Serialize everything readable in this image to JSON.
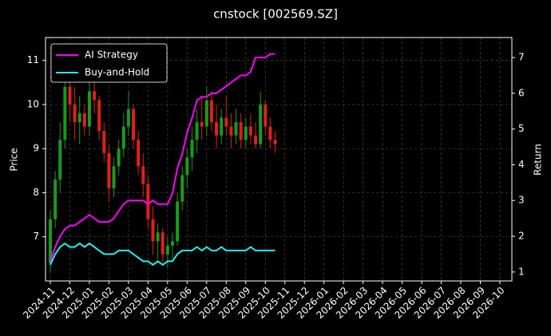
{
  "chart_data": {
    "type": "candlestick",
    "title": "cnstock [002569.SZ]",
    "y_label": "Price",
    "y2_label": "Return",
    "ylim": [
      6.0,
      11.52
    ],
    "yticks": [
      7,
      8,
      9,
      10,
      11
    ],
    "y2lim": [
      0.75,
      7.56
    ],
    "y2ticks": [
      1,
      2,
      3,
      4,
      5,
      6,
      7
    ],
    "xticks": [
      "2024-11",
      "2024-12",
      "2025-01",
      "2025-02",
      "2025-03",
      "2025-04",
      "2025-05",
      "2025-06",
      "2025-07",
      "2025-08",
      "2025-09",
      "2025-10",
      "2025-11",
      "2025-12",
      "2026-01",
      "2026-02",
      "2026-03",
      "2026-04",
      "2026-05",
      "2026-06",
      "2026-07",
      "2026-08",
      "2026-09",
      "2026-10"
    ],
    "grid": true,
    "legend": "upper left",
    "up_color": "#1a9a1a",
    "down_color": "#e0201a",
    "x": [
      "2024-11",
      "2024-11",
      "2024-11",
      "2024-11",
      "2024-12",
      "2024-12",
      "2024-12",
      "2024-12",
      "2025-01",
      "2025-01",
      "2025-01",
      "2025-01",
      "2025-02",
      "2025-02",
      "2025-02",
      "2025-02",
      "2025-03",
      "2025-03",
      "2025-03",
      "2025-03",
      "2025-04",
      "2025-04",
      "2025-04",
      "2025-04",
      "2025-05",
      "2025-05",
      "2025-05",
      "2025-05",
      "2025-06",
      "2025-06",
      "2025-06",
      "2025-06",
      "2025-07",
      "2025-07",
      "2025-07",
      "2025-07",
      "2025-08",
      "2025-08",
      "2025-08",
      "2025-08",
      "2025-09",
      "2025-09",
      "2025-09",
      "2025-09",
      "2025-10",
      "2025-10",
      "2025-10"
    ],
    "ohlc": {
      "open": [
        6.4,
        7.4,
        8.3,
        9.2,
        10.4,
        10.0,
        9.6,
        9.8,
        9.5,
        10.3,
        10.1,
        9.4,
        8.9,
        8.1,
        8.6,
        9.0,
        9.5,
        9.9,
        9.2,
        8.6,
        8.2,
        7.4,
        6.9,
        7.1,
        6.6,
        6.8,
        6.9,
        7.8,
        8.4,
        8.8,
        9.2,
        9.6,
        9.5,
        10.1,
        9.6,
        9.3,
        9.7,
        9.5,
        9.3,
        9.6,
        9.2,
        9.5,
        9.3,
        9.1,
        10.0,
        9.5,
        9.2
      ],
      "high": [
        7.6,
        8.5,
        9.6,
        10.8,
        10.7,
        10.4,
        10.2,
        10.0,
        10.6,
        10.9,
        10.2,
        9.6,
        9.1,
        8.8,
        9.2,
        9.8,
        10.3,
        10.0,
        9.4,
        8.9,
        8.4,
        7.7,
        7.3,
        7.2,
        7.0,
        7.1,
        8.0,
        8.6,
        9.0,
        9.5,
        9.9,
        10.2,
        10.4,
        10.3,
        10.0,
        9.9,
        10.2,
        9.8,
        9.9,
        9.8,
        9.7,
        9.8,
        9.6,
        10.3,
        10.1,
        9.7,
        9.4
      ],
      "low": [
        6.2,
        7.2,
        8.0,
        9.0,
        9.6,
        9.2,
        9.1,
        9.3,
        9.3,
        9.8,
        9.2,
        8.7,
        7.8,
        7.9,
        8.4,
        8.8,
        9.3,
        9.0,
        8.4,
        7.9,
        7.2,
        6.6,
        6.5,
        6.4,
        6.3,
        6.5,
        6.8,
        7.6,
        8.1,
        8.5,
        8.9,
        9.2,
        9.3,
        9.4,
        9.0,
        9.1,
        9.3,
        9.0,
        9.1,
        9.0,
        9.0,
        9.1,
        9.0,
        9.0,
        9.3,
        9.0,
        8.9
      ],
      "close": [
        7.4,
        8.3,
        9.2,
        10.4,
        10.0,
        9.6,
        9.8,
        9.5,
        10.3,
        10.1,
        9.4,
        8.9,
        8.1,
        8.6,
        9.0,
        9.5,
        9.9,
        9.2,
        8.6,
        8.2,
        7.4,
        6.9,
        7.1,
        6.6,
        6.8,
        6.9,
        7.8,
        8.4,
        8.8,
        9.2,
        9.6,
        9.5,
        10.1,
        9.6,
        9.3,
        9.7,
        9.5,
        9.3,
        9.6,
        9.2,
        9.5,
        9.3,
        9.1,
        10.0,
        9.5,
        9.2,
        9.1
      ]
    },
    "series": [
      {
        "name": "AI Strategy",
        "color": "#ff00ff",
        "axis": "y2",
        "values": [
          1.3,
          1.7,
          2.0,
          2.2,
          2.3,
          2.3,
          2.4,
          2.5,
          2.6,
          2.5,
          2.4,
          2.4,
          2.4,
          2.5,
          2.7,
          2.9,
          3.0,
          3.0,
          3.0,
          3.0,
          2.9,
          3.0,
          2.9,
          2.9,
          2.9,
          3.2,
          3.9,
          4.3,
          4.9,
          5.3,
          5.8,
          5.9,
          5.9,
          6.0,
          6.0,
          6.1,
          6.2,
          6.3,
          6.4,
          6.5,
          6.5,
          6.6,
          7.0,
          7.0,
          7.0,
          7.1,
          7.1
        ]
      },
      {
        "name": "Buy-and-Hold",
        "color": "#22eeee",
        "axis": "y2",
        "values": [
          1.2,
          1.5,
          1.7,
          1.8,
          1.7,
          1.7,
          1.8,
          1.7,
          1.8,
          1.7,
          1.6,
          1.5,
          1.5,
          1.5,
          1.6,
          1.6,
          1.6,
          1.5,
          1.4,
          1.3,
          1.3,
          1.2,
          1.3,
          1.2,
          1.3,
          1.3,
          1.5,
          1.6,
          1.6,
          1.6,
          1.7,
          1.6,
          1.7,
          1.6,
          1.6,
          1.7,
          1.6,
          1.6,
          1.6,
          1.6,
          1.6,
          1.7,
          1.6,
          1.6,
          1.6,
          1.6,
          1.6
        ]
      }
    ]
  }
}
